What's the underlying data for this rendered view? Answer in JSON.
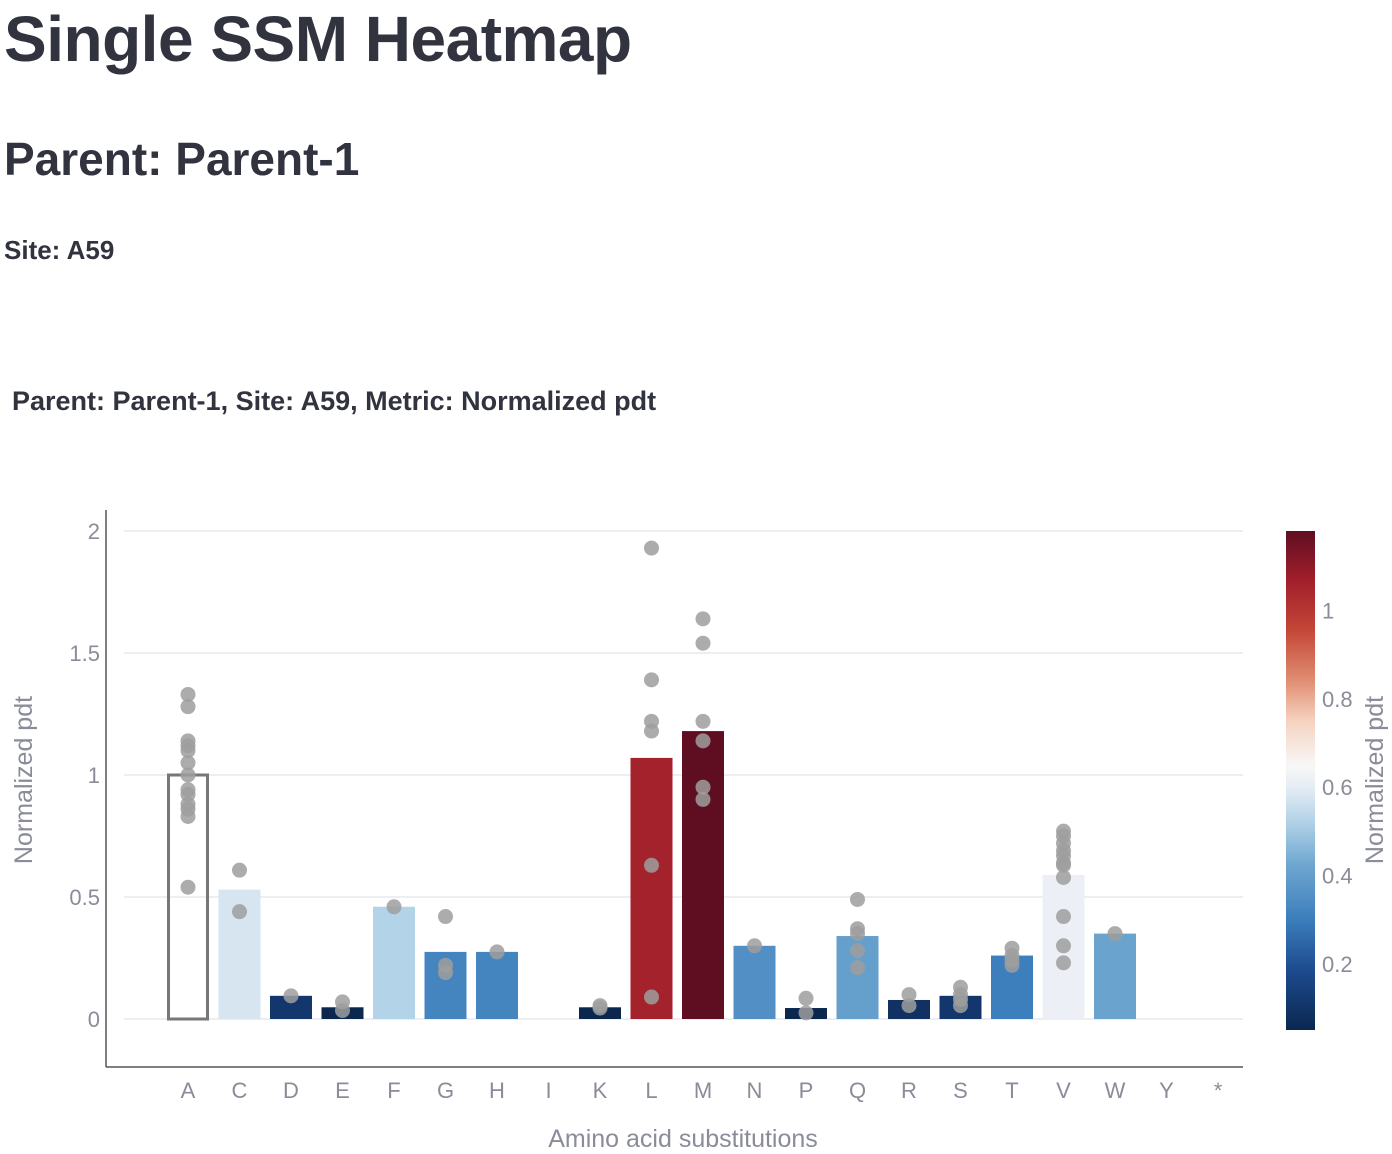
{
  "page": {
    "title": "Single SSM Heatmap",
    "parent_heading": "Parent: Parent-1",
    "site_heading": "Site: A59"
  },
  "chart_data": {
    "type": "bar",
    "title": "Parent: Parent-1, Site: A59, Metric: Normalized pdt",
    "xlabel": "Amino acid substitutions",
    "ylabel": "Normalized pdt",
    "ylim": [
      -0.08,
      2.08
    ],
    "yticks": [
      0,
      0.5,
      1,
      1.5,
      2
    ],
    "grid": true,
    "categories": [
      "A",
      "C",
      "D",
      "E",
      "F",
      "G",
      "H",
      "I",
      "K",
      "L",
      "M",
      "N",
      "P",
      "Q",
      "R",
      "S",
      "T",
      "V",
      "W",
      "Y",
      "*"
    ],
    "values": [
      1.0,
      0.53,
      0.095,
      0.048,
      0.46,
      0.275,
      0.275,
      null,
      0.048,
      1.07,
      1.18,
      0.3,
      0.045,
      0.34,
      0.078,
      0.095,
      0.26,
      0.59,
      0.35,
      null,
      null
    ],
    "parent_category": "A",
    "points": {
      "A": [
        1.33,
        1.28,
        1.14,
        1.12,
        1.1,
        1.05,
        1.0,
        0.94,
        0.92,
        0.88,
        0.86,
        0.83,
        0.54
      ],
      "C": [
        0.61,
        0.44
      ],
      "D": [
        0.095
      ],
      "E": [
        0.07,
        0.035
      ],
      "F": [
        0.46
      ],
      "G": [
        0.42,
        0.22,
        0.19
      ],
      "H": [
        0.275
      ],
      "K": [
        0.055,
        0.045
      ],
      "L": [
        1.93,
        1.39,
        1.22,
        1.18,
        0.63,
        0.09
      ],
      "M": [
        1.64,
        1.54,
        1.22,
        1.14,
        0.95,
        0.9
      ],
      "N": [
        0.3
      ],
      "P": [
        0.085,
        0.025
      ],
      "Q": [
        0.49,
        0.37,
        0.35,
        0.28,
        0.21
      ],
      "R": [
        0.1,
        0.055
      ],
      "S": [
        0.13,
        0.1,
        0.08,
        0.055
      ],
      "T": [
        0.29,
        0.26,
        0.24,
        0.22
      ],
      "V": [
        0.77,
        0.75,
        0.72,
        0.69,
        0.67,
        0.64,
        0.63,
        0.58,
        0.42,
        0.3,
        0.23
      ],
      "W": [
        0.35
      ]
    },
    "colorbar": {
      "title": "Normalized pdt",
      "range": [
        0.05,
        1.18
      ],
      "ticks": [
        0.2,
        0.4,
        0.6,
        0.8,
        1
      ],
      "colorscale": [
        "#0b2750",
        "#1d4b8f",
        "#3b7dbb",
        "#6ea6d0",
        "#b4d3e8",
        "#e8eef5",
        "#f7f7f7",
        "#f6d2bf",
        "#e08e72",
        "#c44738",
        "#a21f2b",
        "#5f0e22"
      ]
    },
    "colors": {
      "point": "#9e9e9e",
      "parent_outline": "#777777",
      "grid": "#e6e8ee",
      "axis": "#555555",
      "tick_text": "#8a8c99"
    }
  }
}
